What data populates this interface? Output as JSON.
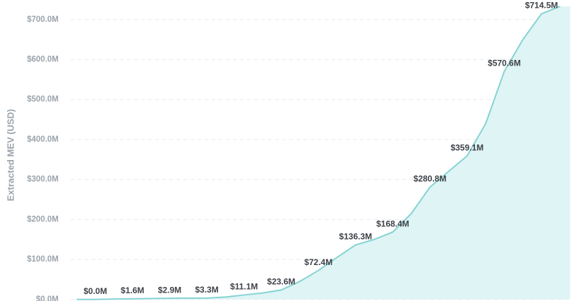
{
  "chart_data": {
    "type": "area",
    "y_label": "Extracted MEV (USD)",
    "x": [
      0,
      1,
      2,
      3,
      4,
      5,
      6,
      7,
      8,
      9,
      10,
      11,
      12,
      13,
      14,
      15,
      16,
      17,
      18,
      19,
      20,
      21,
      22,
      23,
      24,
      25,
      26
    ],
    "values": [
      0,
      0,
      0.8,
      1.6,
      2.2,
      2.9,
      3.1,
      3.3,
      6,
      11.1,
      16,
      23.6,
      45,
      72.4,
      105,
      136.3,
      150,
      168.4,
      215,
      280.8,
      320,
      359.1,
      440,
      570.6,
      650,
      714.5,
      733
    ],
    "value_labels": [
      null,
      "$0.0M",
      null,
      "$1.6M",
      null,
      "$2.9M",
      null,
      "$3.3M",
      null,
      "$11.1M",
      null,
      "$23.6M",
      null,
      "$72.4M",
      null,
      "$136.3M",
      null,
      "$168.4M",
      null,
      "$280.8M",
      null,
      "$359.1M",
      null,
      "$570.6M",
      null,
      "$714.5M",
      null
    ],
    "color": "#86d3d3",
    "fill": "#dff4f5",
    "xlim": [
      -0.33,
      26.55
    ],
    "ylim": [
      -4,
      749
    ],
    "yticks": [
      {
        "value": 0,
        "label": "$0.0M"
      },
      {
        "value": 100,
        "label": "$100.0M"
      },
      {
        "value": 200,
        "label": "$200.0M"
      },
      {
        "value": 300,
        "label": "$300.0M"
      },
      {
        "value": 400,
        "label": "$400.0M"
      },
      {
        "value": 500,
        "label": "$500.0M"
      },
      {
        "value": 600,
        "label": "$600.0M"
      },
      {
        "value": 700,
        "label": "$700.0M"
      }
    ],
    "grid": true
  }
}
